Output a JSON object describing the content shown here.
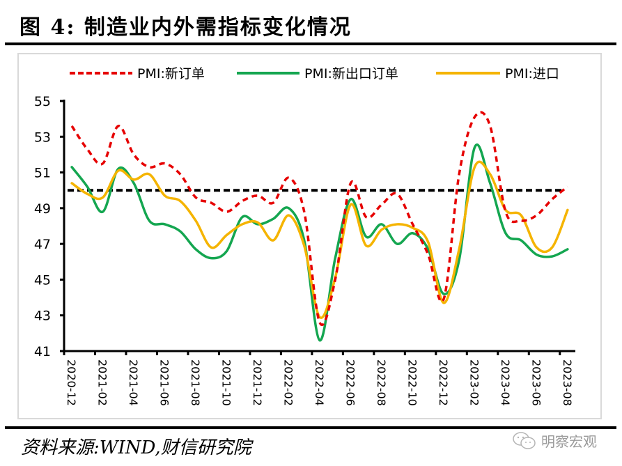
{
  "figure": {
    "title": "图 4:  制造业内外需指标变化情况",
    "source": "资料来源:WIND,财信研究院",
    "watermark": "明察宏观",
    "watermark_icon": "wechat-icon"
  },
  "chart_data": {
    "type": "line",
    "title": "",
    "xlabel": "",
    "ylabel": "",
    "ylim": [
      41,
      55
    ],
    "yticks": [
      41,
      43,
      45,
      47,
      49,
      51,
      53,
      55
    ],
    "grid": false,
    "legend_position": "top",
    "reference_line": {
      "value": 50,
      "style": "dashed",
      "color": "#000000"
    },
    "x": [
      "2020-12",
      "2021-01",
      "2021-02",
      "2021-03",
      "2021-04",
      "2021-05",
      "2021-06",
      "2021-07",
      "2021-08",
      "2021-09",
      "2021-10",
      "2021-11",
      "2021-12",
      "2022-01",
      "2022-02",
      "2022-03",
      "2022-04",
      "2022-05",
      "2022-06",
      "2022-07",
      "2022-08",
      "2022-09",
      "2022-10",
      "2022-11",
      "2022-12",
      "2023-01",
      "2023-02",
      "2023-03",
      "2023-04",
      "2023-05",
      "2023-06",
      "2023-07",
      "2023-08"
    ],
    "xtick_labels": [
      "2020-12",
      "2021-02",
      "2021-04",
      "2021-06",
      "2021-08",
      "2021-10",
      "2021-12",
      "2022-02",
      "2022-04",
      "2022-06",
      "2022-08",
      "2022-10",
      "2022-12",
      "2023-02",
      "2023-04",
      "2023-06",
      "2023-08"
    ],
    "series": [
      {
        "name": "PMI:新订单",
        "color": "#e60000",
        "style": "dashed",
        "values": [
          53.6,
          52.3,
          51.5,
          53.6,
          52.0,
          51.3,
          51.5,
          50.9,
          49.6,
          49.3,
          48.8,
          49.4,
          49.7,
          49.3,
          50.7,
          48.8,
          42.6,
          45.0,
          50.4,
          48.5,
          49.2,
          49.8,
          48.1,
          46.4,
          43.9,
          50.9,
          54.1,
          53.6,
          48.8,
          48.3,
          48.6,
          49.5,
          50.2
        ]
      },
      {
        "name": "PMI:新出口订单",
        "color": "#14a650",
        "style": "solid",
        "values": [
          51.3,
          50.2,
          48.8,
          51.2,
          50.4,
          48.3,
          48.1,
          47.7,
          46.7,
          46.2,
          46.6,
          48.5,
          48.1,
          48.4,
          49.0,
          47.2,
          41.6,
          46.2,
          49.5,
          47.4,
          48.1,
          47.0,
          47.6,
          46.7,
          44.2,
          46.1,
          52.4,
          50.4,
          47.6,
          47.2,
          46.4,
          46.3,
          46.7
        ]
      },
      {
        "name": "PMI:进口",
        "color": "#f5b400",
        "style": "solid",
        "values": [
          50.4,
          49.8,
          49.6,
          51.1,
          50.6,
          50.9,
          49.7,
          49.4,
          48.3,
          46.8,
          47.5,
          48.1,
          48.2,
          47.2,
          48.6,
          46.9,
          42.9,
          45.1,
          49.2,
          46.9,
          47.8,
          48.1,
          47.9,
          47.1,
          43.7,
          46.7,
          51.3,
          50.9,
          48.9,
          48.6,
          46.8,
          46.8,
          48.9
        ]
      }
    ]
  }
}
